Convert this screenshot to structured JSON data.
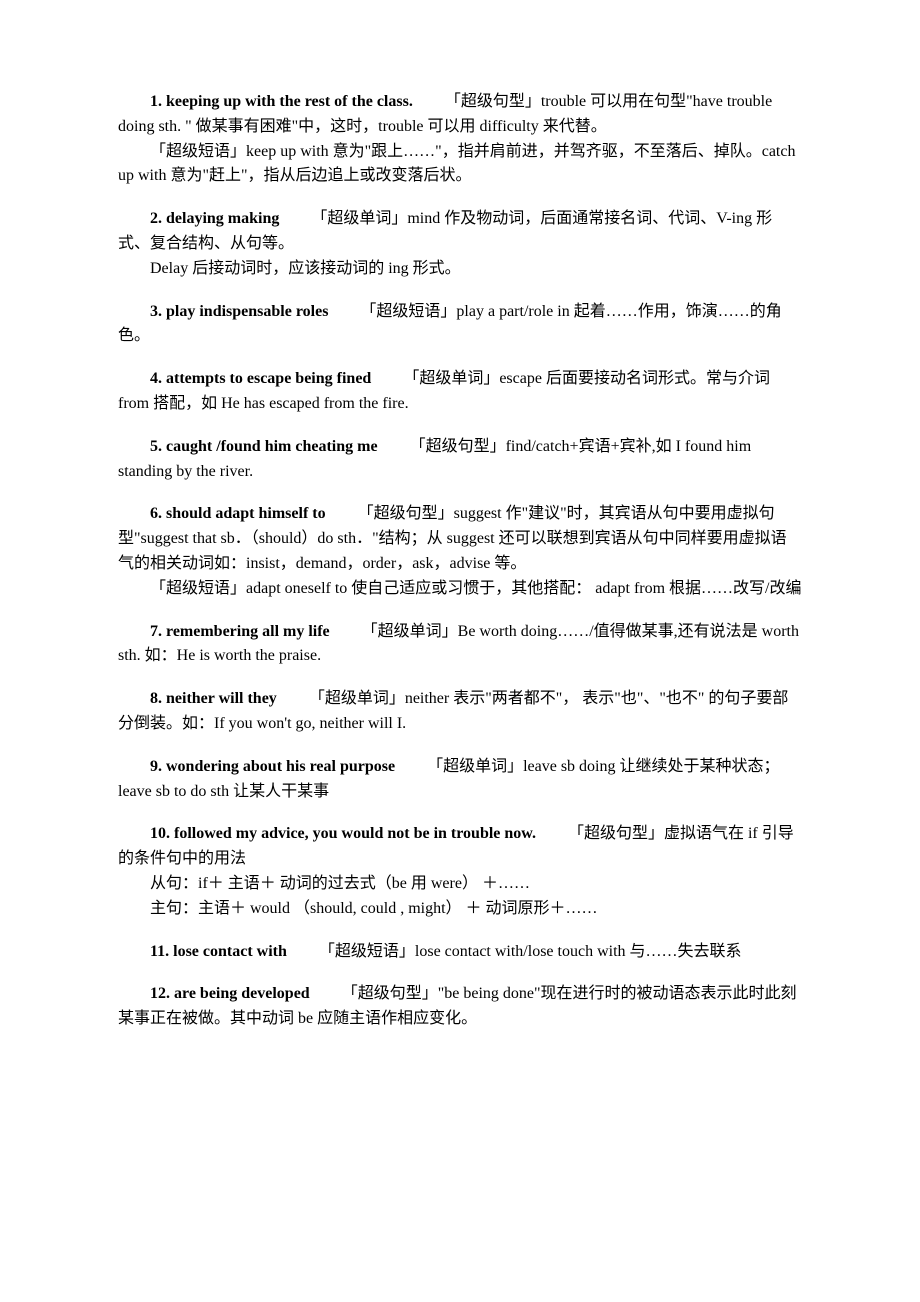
{
  "entries": [
    {
      "num": "1.",
      "ans": "keeping up with the rest of the class.",
      "lines": [
        "「超级句型」trouble 可以用在句型\"have trouble doing sth. \" 做某事有困难\"中，这时，trouble 可以用 difficulty 来代替。",
        "「超级短语」keep up with 意为\"跟上……\"，指并肩前进，并驾齐驱，不至落后、掉队。catch up with 意为\"赶上\"，指从后边追上或改变落后状。"
      ]
    },
    {
      "num": "2.",
      "ans": "delaying making",
      "lines": [
        "「超级单词」mind 作及物动词，后面通常接名词、代词、V-ing 形式、复合结构、从句等。",
        "Delay 后接动词时，应该接动词的 ing 形式。"
      ]
    },
    {
      "num": "3.",
      "ans": "play indispensable roles",
      "lines": [
        "「超级短语」play a part/role in 起着……作用，饰演……的角色。"
      ]
    },
    {
      "num": "4.",
      "ans": "attempts to escape being fined",
      "lines": [
        "「超级单词」escape 后面要接动名词形式。常与介词 from 搭配，如 He has escaped from the fire."
      ]
    },
    {
      "num": "5.",
      "ans": "caught /found him cheating me",
      "lines": [
        "「超级句型」find/catch+宾语+宾补,如 I found him standing by the river."
      ]
    },
    {
      "num": "6.",
      "ans": "should adapt himself to",
      "lines": [
        "「超级句型」suggest 作\"建议\"时，其宾语从句中要用虚拟句型\"suggest that sb．（should）do sth．\"结构；从 suggest 还可以联想到宾语从句中同样要用虚拟语气的相关动词如：insist，demand，order，ask，advise 等。",
        "「超级短语」adapt oneself to  使自己适应或习惯于，其他搭配：  adapt from  根据……改写/改编"
      ]
    },
    {
      "num": "7.",
      "ans": "remembering all my life",
      "lines": [
        "「超级单词」Be worth doing……/值得做某事,还有说法是 worth sth.  如：He is worth the praise."
      ]
    },
    {
      "num": "8.",
      "ans": "neither will they",
      "lines": [
        "「超级单词」neither 表示\"两者都不\"，  表示\"也\"、\"也不\" 的句子要部分倒装。如：If you won't go, neither will I."
      ]
    },
    {
      "num": "9.",
      "ans": "wondering about his real purpose",
      "lines": [
        "「超级单词」leave sb doing  让继续处于某种状态；leave sb to do sth  让某人干某事"
      ]
    },
    {
      "num": "10.",
      "ans": "followed my advice, you would not be in trouble now.",
      "lines": [
        "「超级句型」虚拟语气在 if  引导的条件句中的用法",
        "从句：if＋ 主语＋ 动词的过去式（be 用 were） ＋……",
        "主句：主语＋ would （should, could , might） ＋ 动词原形＋……"
      ]
    },
    {
      "num": "11.",
      "ans": "lose contact with",
      "lines": [
        "「超级短语」lose contact with/lose touch with 与……失去联系"
      ]
    },
    {
      "num": "12.",
      "ans": "are being developed",
      "lines": [
        "「超级句型」\"be being done\"现在进行时的被动语态表示此时此刻某事正在被做。其中动词 be 应随主语作相应变化。"
      ]
    }
  ]
}
